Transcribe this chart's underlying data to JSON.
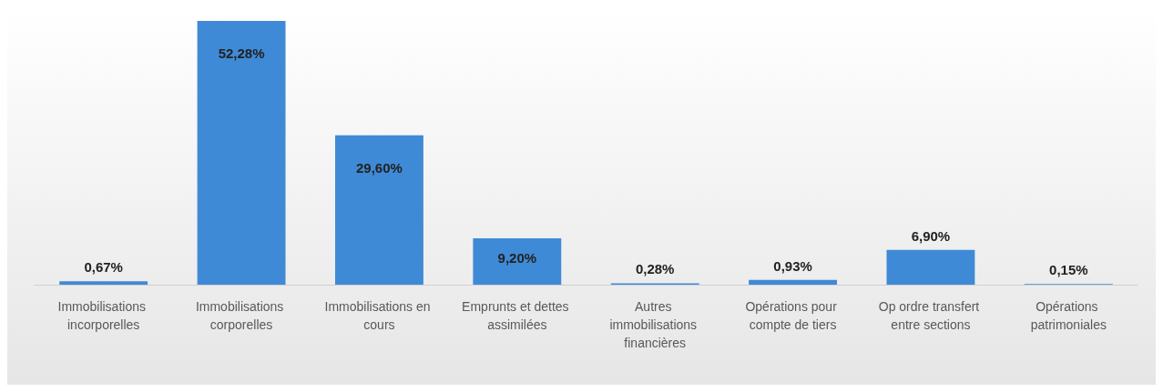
{
  "chart_data": {
    "type": "bar",
    "categories": [
      "Immobilisations incorporelles",
      "Immobilisations corporelles",
      "Immobilisations en cours",
      "Emprunts et dettes assimilées",
      "Autres immobilisations financières",
      "Opérations pour compte de tiers",
      "Op ordre transfert entre sections",
      "Opérations patrimoniales"
    ],
    "values": [
      0.67,
      52.28,
      29.6,
      9.2,
      0.28,
      0.93,
      6.9,
      0.15
    ],
    "value_labels": [
      "0,67%",
      "52,28%",
      "29,60%",
      "9,20%",
      "0,28%",
      "0,93%",
      "6,90%",
      "0,15%"
    ],
    "color": "#3f8ad6"
  }
}
